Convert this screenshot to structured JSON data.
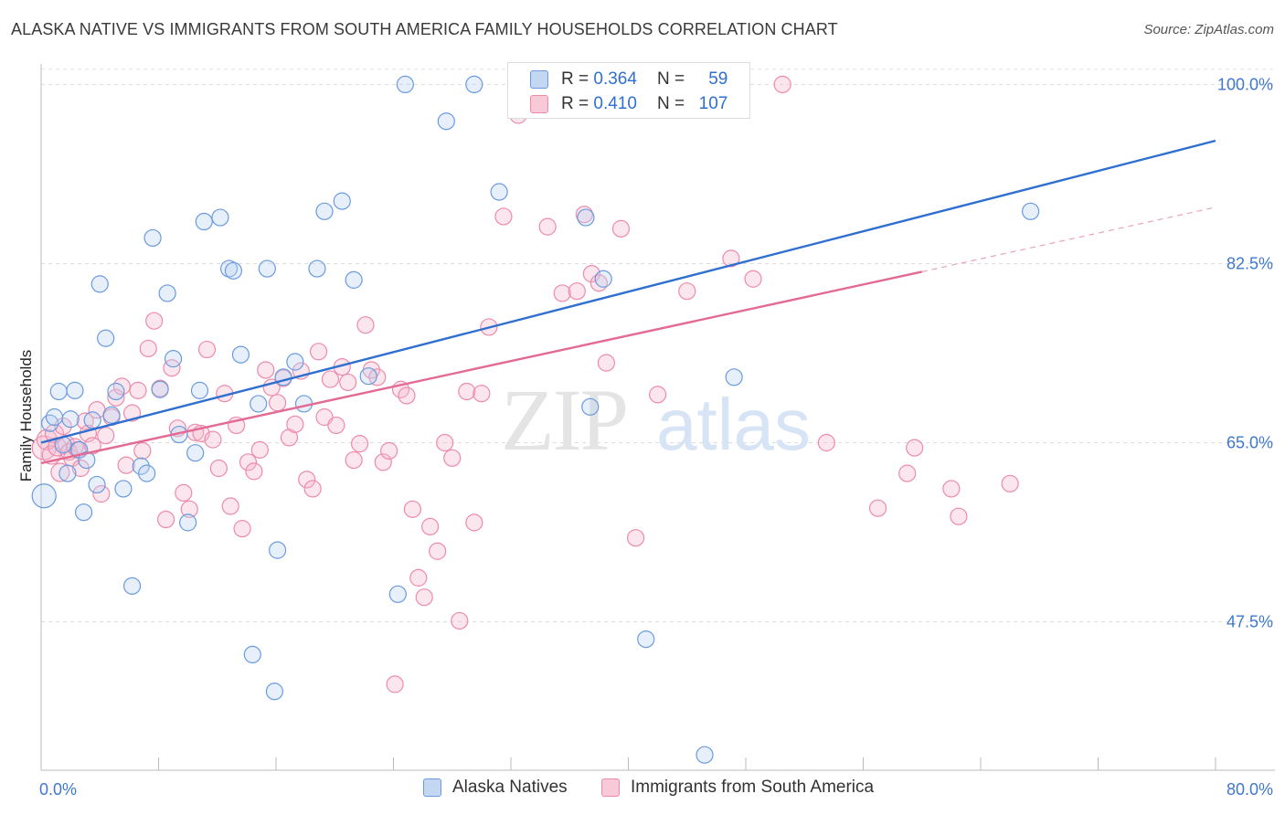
{
  "title": "ALASKA NATIVE VS IMMIGRANTS FROM SOUTH AMERICA FAMILY HOUSEHOLDS CORRELATION CHART",
  "source": "Source: ZipAtlas.com",
  "watermark": {
    "zip": "ZIP",
    "atlas": "atlas"
  },
  "legend": {
    "r_label": "R =",
    "n_label": "N =",
    "rows": [
      {
        "r": "0.364",
        "n": "59"
      },
      {
        "r": "0.410",
        "n": "107"
      }
    ]
  },
  "chart_data": {
    "type": "scatter",
    "title": "ALASKA NATIVE VS IMMIGRANTS FROM SOUTH AMERICA FAMILY HOUSEHOLDS CORRELATION CHART",
    "xlabel": "",
    "ylabel": "Family Households",
    "xlim": [
      0,
      80
    ],
    "ylim": [
      33,
      102
    ],
    "x_tick_labels": [
      "0.0%",
      "80.0%"
    ],
    "y_ticks": [
      47.5,
      65.0,
      82.5,
      100.0
    ],
    "y_tick_labels": [
      "47.5%",
      "65.0%",
      "82.5%",
      "100.0%"
    ],
    "grid": true,
    "legend_position": "top-center",
    "colors": {
      "Alaska Natives": "#6a9be0",
      "Immigrants from South America": "#ee8aab",
      "Alaska Natives line": "#2f6fd0",
      "Immigrants from South America line": "#e36a92"
    },
    "series": [
      {
        "name": "Alaska Natives",
        "stats": {
          "r": 0.364,
          "n": 59
        },
        "trend": {
          "x0": 0,
          "y0": 65.0,
          "x1": 80,
          "y1": 94.5
        },
        "x": [
          0.2,
          0.6,
          0.9,
          1.2,
          1.5,
          1.8,
          2.0,
          2.3,
          2.6,
          2.9,
          3.1,
          3.5,
          3.8,
          4.0,
          4.4,
          4.8,
          5.1,
          5.6,
          6.2,
          6.8,
          7.2,
          7.6,
          8.1,
          8.6,
          9.0,
          9.4,
          10.0,
          10.5,
          10.8,
          11.1,
          12.2,
          12.8,
          13.1,
          13.6,
          14.4,
          14.8,
          15.4,
          15.9,
          16.1,
          16.5,
          17.3,
          17.9,
          18.8,
          19.3,
          20.5,
          21.3,
          22.3,
          24.3,
          24.8,
          27.6,
          29.5,
          31.2,
          37.1,
          37.4,
          38.3,
          41.2,
          45.2,
          47.2,
          67.4
        ],
        "y": [
          59.8,
          66.9,
          67.5,
          70.0,
          64.8,
          62.0,
          67.3,
          70.1,
          64.3,
          58.2,
          63.3,
          67.2,
          60.9,
          80.5,
          75.2,
          67.7,
          70.0,
          60.5,
          51.0,
          62.7,
          62.0,
          85.0,
          70.2,
          79.6,
          73.2,
          65.8,
          57.2,
          64.0,
          70.1,
          86.6,
          87.0,
          82.0,
          81.8,
          73.6,
          44.3,
          68.8,
          82.0,
          40.7,
          54.5,
          71.4,
          72.9,
          68.8,
          82.0,
          87.6,
          88.6,
          80.9,
          71.5,
          50.2,
          100.0,
          96.4,
          100.0,
          89.5,
          87.0,
          68.5,
          81.0,
          45.8,
          34.5,
          71.4,
          87.6
        ],
        "size": [
          13,
          9,
          9,
          9,
          9,
          9,
          9,
          9,
          9,
          9,
          9,
          9,
          9,
          9,
          9,
          9,
          9,
          9,
          9,
          9,
          9,
          9,
          9,
          9,
          9,
          9,
          9,
          9,
          9,
          9,
          9,
          9,
          9,
          9,
          9,
          9,
          9,
          9,
          9,
          9,
          9,
          9,
          9,
          9,
          9,
          9,
          9,
          9,
          9,
          9,
          9,
          9,
          9,
          9,
          9,
          9,
          9,
          9,
          9
        ]
      },
      {
        "name": "Immigrants from South America",
        "stats": {
          "r": 0.41,
          "n": 107
        },
        "trend_solid": {
          "x0": 0,
          "y0": 63.0,
          "x1": 60,
          "y1": 81.7
        },
        "trend_dashed": {
          "x0": 60,
          "y0": 81.7,
          "x1": 80,
          "y1": 88.0
        },
        "x": [
          0.2,
          0.4,
          0.7,
          0.9,
          1.1,
          1.3,
          1.5,
          1.7,
          1.9,
          2.1,
          2.3,
          2.5,
          2.7,
          3.0,
          3.2,
          3.5,
          3.8,
          4.1,
          4.4,
          4.8,
          5.1,
          5.5,
          5.8,
          6.2,
          6.6,
          6.9,
          7.3,
          7.7,
          8.1,
          8.5,
          8.9,
          9.3,
          9.7,
          10.1,
          10.5,
          10.9,
          11.3,
          11.7,
          12.1,
          12.5,
          12.9,
          13.3,
          13.7,
          14.1,
          14.5,
          14.9,
          15.3,
          15.7,
          16.1,
          16.5,
          16.9,
          17.3,
          17.7,
          18.1,
          18.5,
          18.9,
          19.3,
          19.7,
          20.1,
          20.5,
          20.9,
          21.3,
          21.7,
          22.1,
          22.5,
          22.9,
          23.3,
          23.7,
          24.1,
          24.5,
          24.9,
          25.3,
          25.7,
          26.1,
          26.5,
          27.0,
          27.5,
          28.0,
          28.5,
          29.0,
          29.5,
          30.0,
          30.5,
          31.5,
          32.5,
          33.5,
          34.5,
          35.5,
          36.5,
          37.0,
          37.5,
          38.0,
          38.5,
          39.5,
          40.5,
          42.0,
          44.0,
          47.0,
          48.5,
          50.5,
          53.5,
          57.0,
          59.0,
          59.5,
          62.0,
          62.5,
          66.0
        ],
        "y": [
          64.5,
          65.3,
          63.8,
          65.9,
          64.6,
          62.1,
          66.6,
          64.9,
          64.1,
          63.5,
          64.6,
          64.3,
          62.5,
          67.1,
          65.9,
          64.7,
          68.2,
          60.0,
          65.7,
          67.5,
          69.4,
          70.5,
          62.8,
          67.9,
          70.1,
          64.2,
          74.2,
          76.9,
          70.3,
          57.5,
          72.3,
          66.4,
          60.1,
          58.5,
          66.0,
          65.9,
          74.1,
          65.3,
          62.5,
          69.8,
          58.8,
          66.7,
          56.6,
          63.1,
          62.2,
          64.3,
          72.1,
          70.4,
          68.9,
          71.3,
          65.5,
          66.8,
          72.0,
          61.4,
          60.5,
          73.9,
          67.5,
          71.2,
          66.7,
          72.4,
          70.9,
          63.3,
          64.9,
          76.5,
          72.1,
          71.4,
          63.1,
          64.2,
          41.4,
          70.2,
          69.6,
          58.5,
          51.8,
          49.9,
          56.8,
          54.4,
          65.0,
          63.5,
          47.6,
          70.0,
          57.2,
          69.8,
          76.3,
          87.1,
          97.0,
          100.0,
          86.1,
          79.6,
          79.8,
          87.3,
          81.5,
          80.6,
          72.8,
          85.9,
          55.7,
          69.7,
          79.8,
          83.0,
          81.0,
          100.0,
          65.0,
          58.6,
          62.0,
          64.5,
          60.5,
          57.8,
          61.0
        ],
        "size": [
          13,
          11,
          10,
          10,
          10,
          10,
          9,
          9,
          9,
          9,
          9,
          9,
          9,
          9,
          9,
          9,
          9,
          9,
          9,
          9,
          9,
          9,
          9,
          9,
          9,
          9,
          9,
          9,
          9,
          9,
          9,
          9,
          9,
          9,
          9,
          9,
          9,
          9,
          9,
          9,
          9,
          9,
          9,
          9,
          9,
          9,
          9,
          9,
          9,
          9,
          9,
          9,
          9,
          9,
          9,
          9,
          9,
          9,
          9,
          9,
          9,
          9,
          9,
          9,
          9,
          9,
          9,
          9,
          9,
          9,
          9,
          9,
          9,
          9,
          9,
          9,
          9,
          9,
          9,
          9,
          9,
          9,
          9,
          9,
          9,
          9,
          9,
          9,
          9,
          9,
          9,
          9,
          9,
          9,
          9,
          9,
          9,
          9,
          9,
          9,
          9,
          9,
          9,
          9,
          9,
          9,
          9
        ]
      }
    ]
  }
}
